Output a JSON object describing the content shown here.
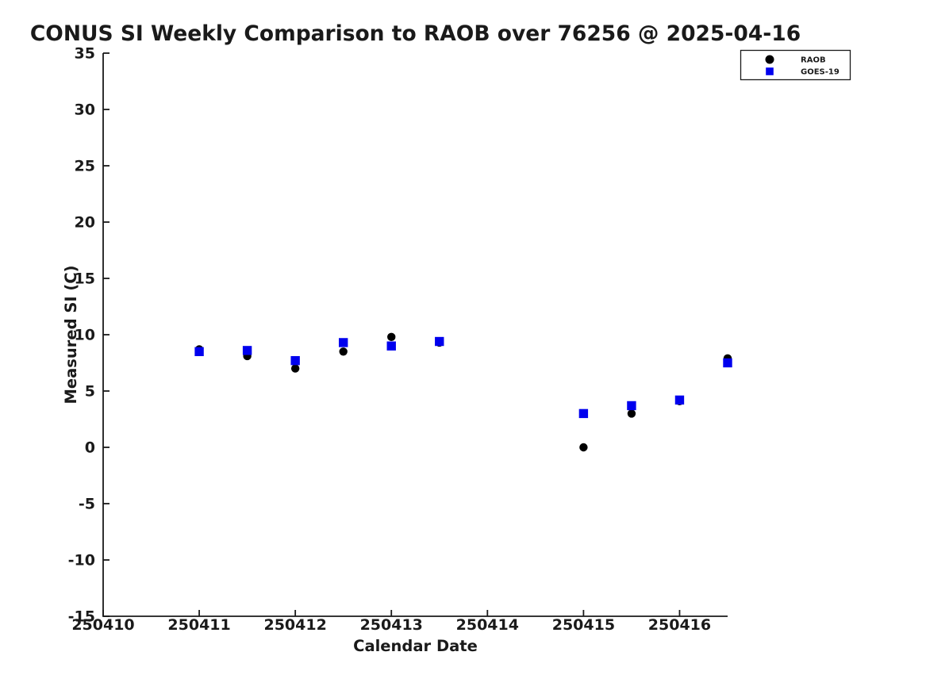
{
  "chart_data": {
    "type": "scatter",
    "title": "CONUS SI Weekly Comparison to RAOB over 76256 @ 2025-04-16",
    "xlabel": "Calendar Date",
    "ylabel": "Measured SI (C)",
    "xlim": [
      250410,
      250416.5
    ],
    "ylim": [
      -15,
      35
    ],
    "xticks": [
      250410,
      250411,
      250412,
      250413,
      250414,
      250415,
      250416
    ],
    "yticks": [
      -15,
      -10,
      -5,
      0,
      5,
      10,
      15,
      20,
      25,
      30,
      35
    ],
    "grid": false,
    "legend_position": "top-right",
    "x": [
      250411.0,
      250411.5,
      250412.0,
      250412.5,
      250413.0,
      250413.5,
      250415.0,
      250415.5,
      250416.0,
      250416.5
    ],
    "series": [
      {
        "name": "RAOB",
        "marker": "circle",
        "color": "#000000",
        "values": [
          8.7,
          8.1,
          7.0,
          8.5,
          9.8,
          9.3,
          0.0,
          3.0,
          4.1,
          7.9
        ]
      },
      {
        "name": "GOES-19",
        "marker": "square",
        "color": "#0000ee",
        "values": [
          8.5,
          8.6,
          7.7,
          9.3,
          9.0,
          9.4,
          3.0,
          3.7,
          4.2,
          7.5
        ]
      }
    ],
    "colors": {
      "axis": "#1a1a1a",
      "background": "#ffffff",
      "raob": "#000000",
      "goes19": "#0000ee"
    }
  }
}
